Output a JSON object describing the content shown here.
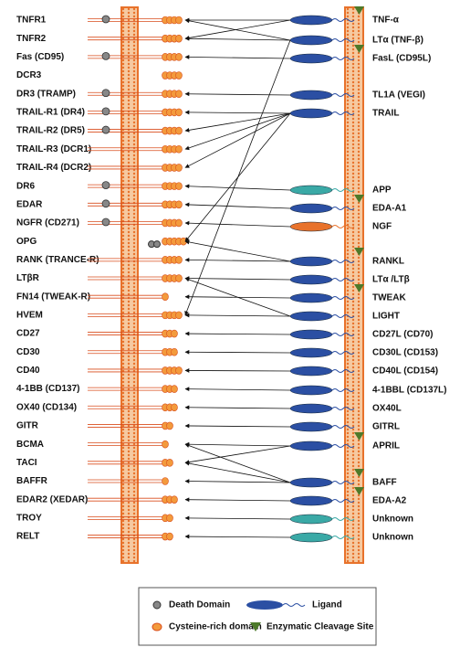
{
  "receptors": [
    "TNFR1",
    "TNFR2",
    "Fas (CD95)",
    "DCR3",
    "DR3 (TRAMP)",
    "TRAIL-R1 (DR4)",
    "TRAIL-R2 (DR5)",
    "TRAIL-R3 (DCR1)",
    "TRAIL-R4 (DCR2)",
    "DR6",
    "EDAR",
    "NGFR (CD271)",
    "OPG",
    "RANK (TRANCE-R)",
    "LTβR",
    "FN14 (TWEAK-R)",
    "HVEM",
    "CD27",
    "CD30",
    "CD40",
    "4-1BB (CD137)",
    "OX40 (CD134)",
    "GITR",
    "BCMA",
    "TACI",
    "BAFFR",
    "EDAR2 (XEDAR)",
    "TROY",
    "RELT"
  ],
  "ligands": [
    "TNF-α",
    "LTα (TNF-β)",
    "FasL (CD95L)",
    "TL1A (VEGI)",
    "TRAIL",
    "APP",
    "EDA-A1",
    "NGF",
    "RANKL",
    "LTα /LTβ",
    "TWEAK",
    "LIGHT",
    "CD27L (CD70)",
    "CD30L (CD153)",
    "CD40L (CD154)",
    "4-1BBL (CD137L)",
    "OX40L",
    "GITRL",
    "APRIL",
    "BAFF",
    "EDA-A2",
    "Unknown",
    "Unknown"
  ],
  "legend": {
    "death_domain": "Death Domain",
    "ligand": "Ligand",
    "cysteine_rich": "Cysteine-rich domain",
    "cleavage": "Enzymatic Cleavage Site"
  }
}
